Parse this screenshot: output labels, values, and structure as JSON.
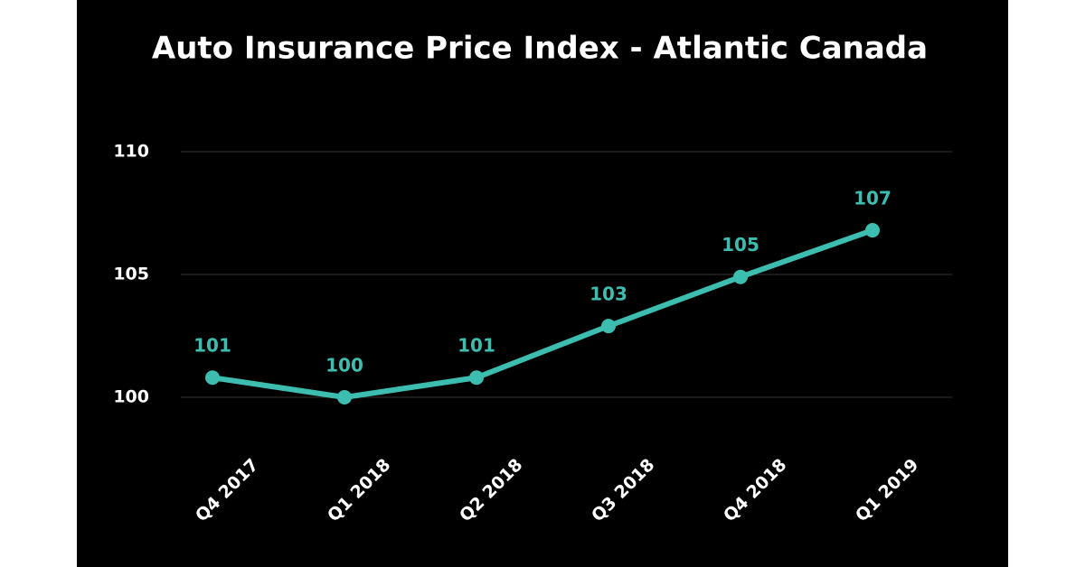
{
  "chart_data": {
    "type": "line",
    "title": "Auto Insurance Price Index - Atlantic Canada",
    "categories": [
      "Q4 2017",
      "Q1 2018",
      "Q2 2018",
      "Q3 2018",
      "Q4 2018",
      "Q1 2019"
    ],
    "values": [
      100.8,
      100,
      100.8,
      102.9,
      104.9,
      106.8
    ],
    "value_labels": [
      "101",
      "100",
      "101",
      "103",
      "105",
      "107"
    ],
    "color": "#3dbdb0",
    "ylim": [
      100,
      110
    ],
    "yticks": [
      100,
      105,
      110
    ],
    "grid": true
  }
}
